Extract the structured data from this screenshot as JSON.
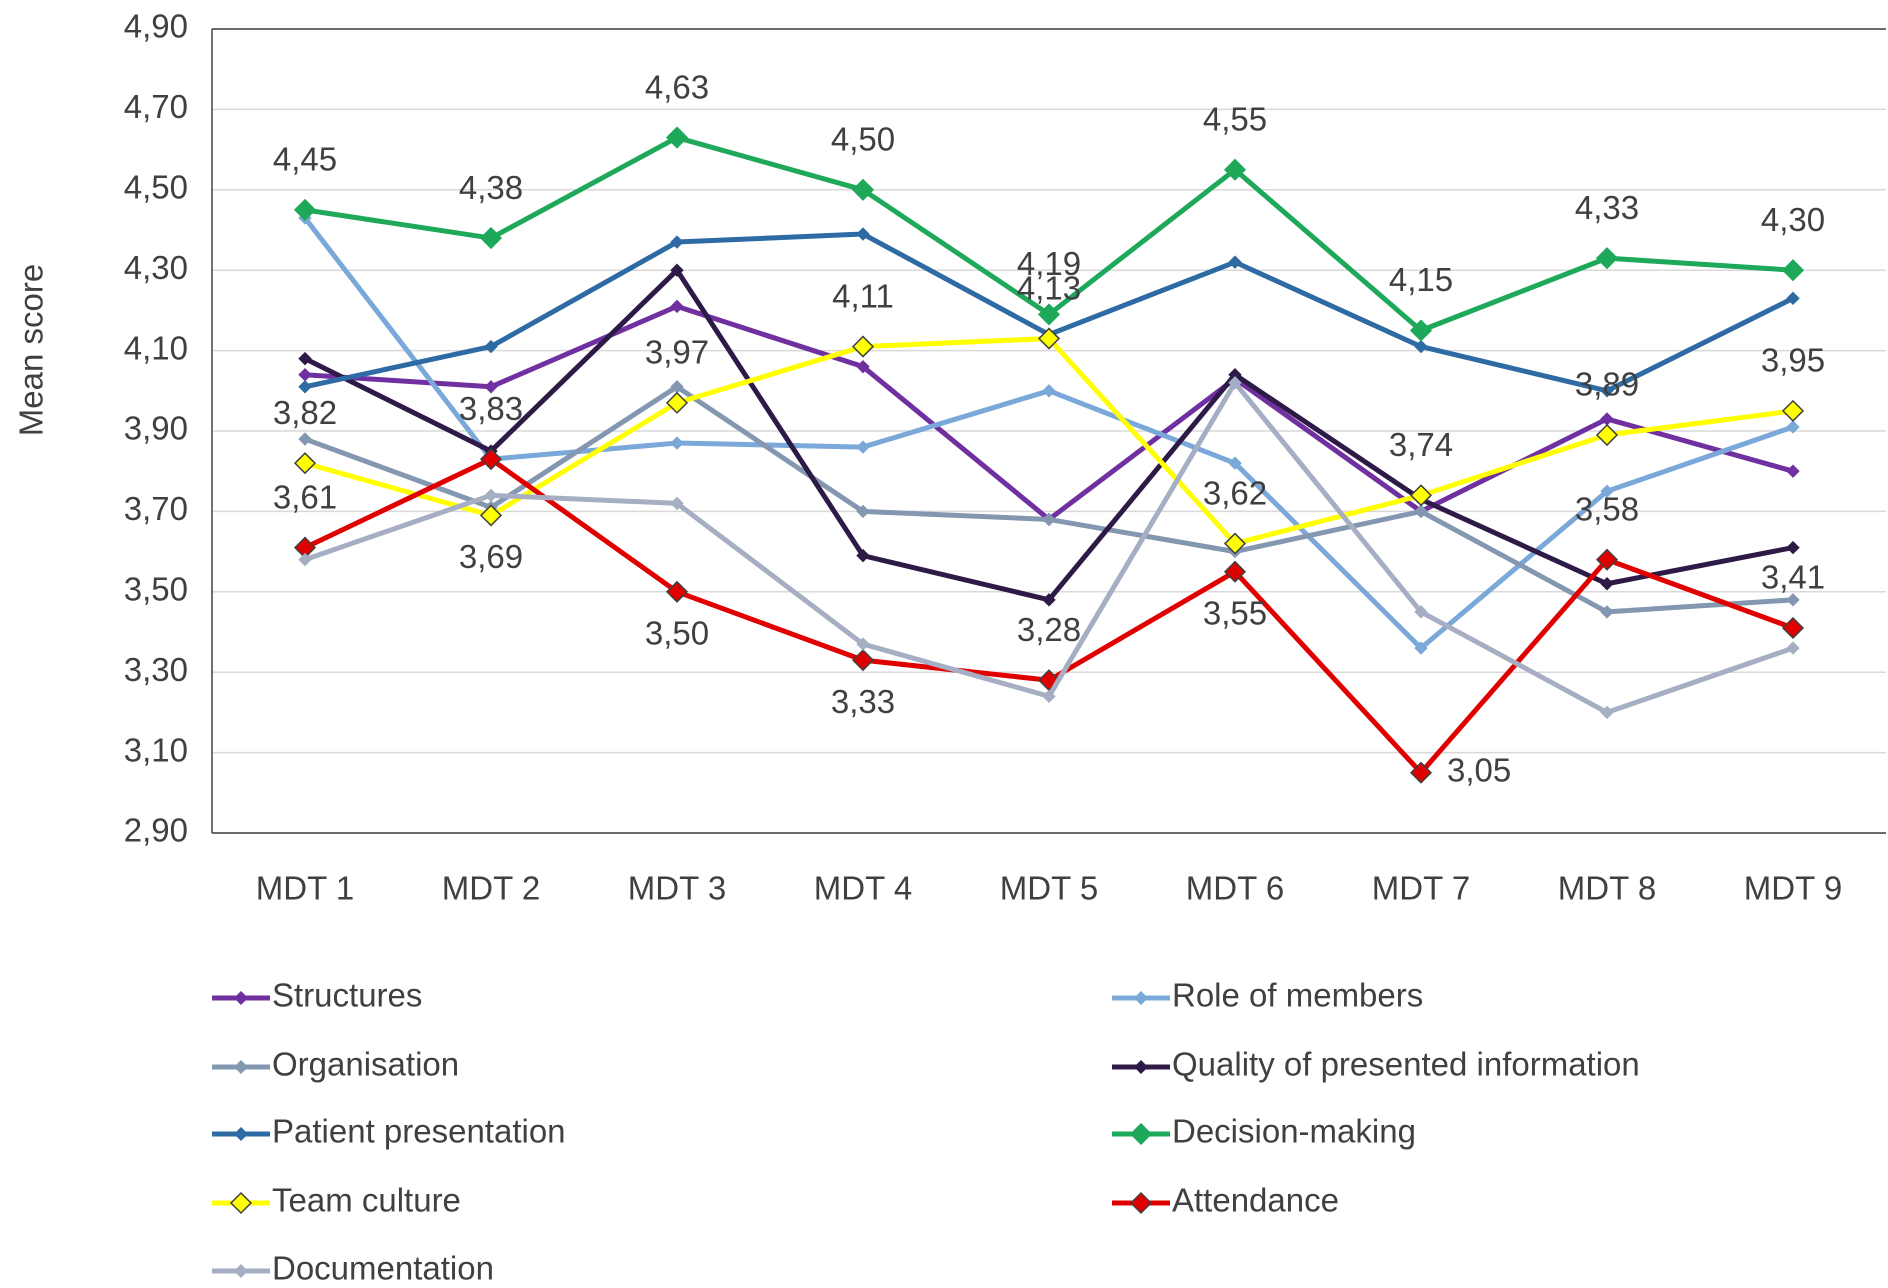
{
  "chart_data": {
    "type": "line",
    "y_label": "Mean score",
    "categories": [
      "MDT 1",
      "MDT 2",
      "MDT 3",
      "MDT 4",
      "MDT 5",
      "MDT 6",
      "MDT 7",
      "MDT 8",
      "MDT 9"
    ],
    "ylim": [
      2.9,
      4.9
    ],
    "yticks": [
      {
        "value": 2.9,
        "label": "2,90"
      },
      {
        "value": 3.1,
        "label": "3,10"
      },
      {
        "value": 3.3,
        "label": "3,30"
      },
      {
        "value": 3.5,
        "label": "3,50"
      },
      {
        "value": 3.7,
        "label": "3,70"
      },
      {
        "value": 3.9,
        "label": "3,90"
      },
      {
        "value": 4.1,
        "label": "4,10"
      },
      {
        "value": 4.3,
        "label": "4,30"
      },
      {
        "value": 4.5,
        "label": "4,50"
      },
      {
        "value": 4.7,
        "label": "4,70"
      },
      {
        "value": 4.9,
        "label": "4,90"
      }
    ],
    "grid": true,
    "legend": "bottom",
    "series": [
      {
        "name": "Structures",
        "color": "#7030a0",
        "values": [
          4.04,
          4.01,
          4.21,
          4.06,
          3.68,
          4.03,
          3.7,
          3.93,
          3.8
        ]
      },
      {
        "name": "Role of members",
        "color": "#7aa8d8",
        "values": [
          4.43,
          3.83,
          3.87,
          3.86,
          4.0,
          3.82,
          3.36,
          3.75,
          3.91
        ]
      },
      {
        "name": "Organisation",
        "color": "#8497b0",
        "values": [
          3.88,
          3.71,
          4.01,
          3.7,
          3.68,
          3.6,
          3.7,
          3.45,
          3.48
        ]
      },
      {
        "name": "Quality of presented information",
        "color": "#2e1a47",
        "values": [
          4.08,
          3.85,
          4.3,
          3.59,
          3.48,
          4.04,
          3.73,
          3.52,
          3.61
        ]
      },
      {
        "name": "Patient presentation",
        "color": "#2e6aa3",
        "values": [
          4.01,
          4.11,
          4.37,
          4.39,
          4.14,
          4.32,
          4.11,
          4.0,
          4.23
        ]
      },
      {
        "name": "Decision-making",
        "color": "#1ea85a",
        "values": [
          4.45,
          4.38,
          4.63,
          4.5,
          4.19,
          4.55,
          4.15,
          4.33,
          4.3
        ],
        "value_labels": [
          "4,45",
          "4,38",
          "4,63",
          "4,50",
          "4,19",
          "4,55",
          "4,15",
          "4,33",
          "4,30"
        ]
      },
      {
        "name": "Team culture",
        "color": "#ffff00",
        "values": [
          3.82,
          3.69,
          3.97,
          4.11,
          4.13,
          3.62,
          3.74,
          3.89,
          3.95
        ],
        "value_labels": [
          "3,82",
          "3,69",
          "3,97",
          "4,11",
          "4,13",
          "3,62",
          "3,74",
          "3,89",
          "3,95"
        ]
      },
      {
        "name": "Attendance",
        "color": "#e00000",
        "values": [
          3.61,
          3.83,
          3.5,
          3.33,
          3.28,
          3.55,
          3.05,
          3.58,
          3.41
        ],
        "value_labels": [
          "3,61",
          "3,83",
          "3,50",
          "3,33",
          "3,28",
          "3,55",
          "3,05",
          "3,58",
          "3,41"
        ]
      },
      {
        "name": "Documentation",
        "color": "#a6aec4",
        "values": [
          3.58,
          3.74,
          3.72,
          3.37,
          3.24,
          4.02,
          3.45,
          3.2,
          3.36
        ]
      }
    ]
  }
}
